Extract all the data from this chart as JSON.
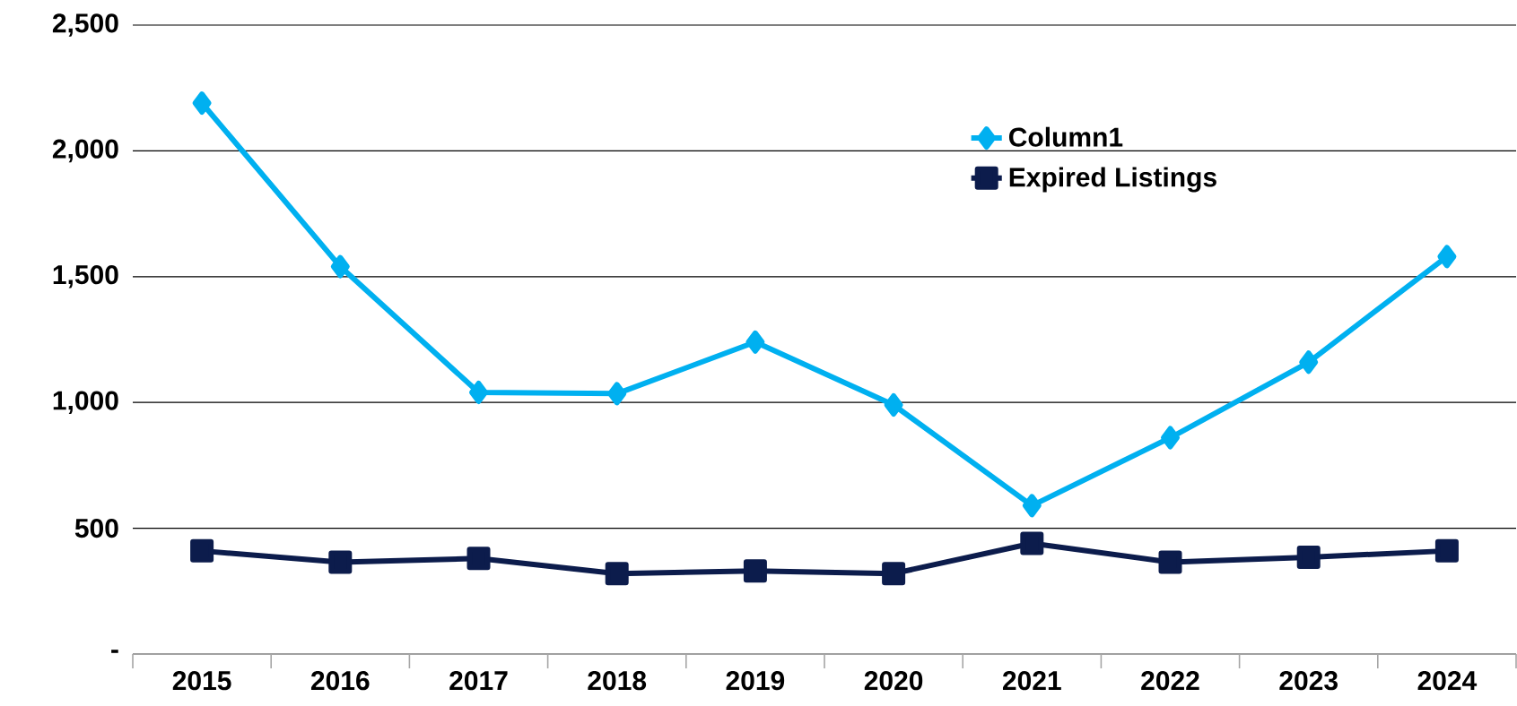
{
  "chart_data": {
    "type": "line",
    "categories": [
      "2015",
      "2016",
      "2017",
      "2018",
      "2019",
      "2020",
      "2021",
      "2022",
      "2023",
      "2024"
    ],
    "series": [
      {
        "name": "Column1",
        "color": "#00b0f0",
        "marker": "diamond",
        "values": [
          2190,
          1540,
          1040,
          1035,
          1240,
          990,
          590,
          860,
          1160,
          1580
        ]
      },
      {
        "name": "Expired Listings",
        "color": "#0c1c4c",
        "marker": "square",
        "values": [
          410,
          365,
          380,
          320,
          330,
          320,
          440,
          365,
          385,
          410
        ]
      }
    ],
    "ylim": [
      0,
      2500
    ],
    "yticks": [
      {
        "value": 0,
        "label": "-"
      },
      {
        "value": 500,
        "label": "500"
      },
      {
        "value": 1000,
        "label": "1,000"
      },
      {
        "value": 1500,
        "label": "1,500"
      },
      {
        "value": 2000,
        "label": "2,000"
      },
      {
        "value": 2500,
        "label": "2,500"
      }
    ],
    "grid": "y",
    "legend": "top right"
  }
}
